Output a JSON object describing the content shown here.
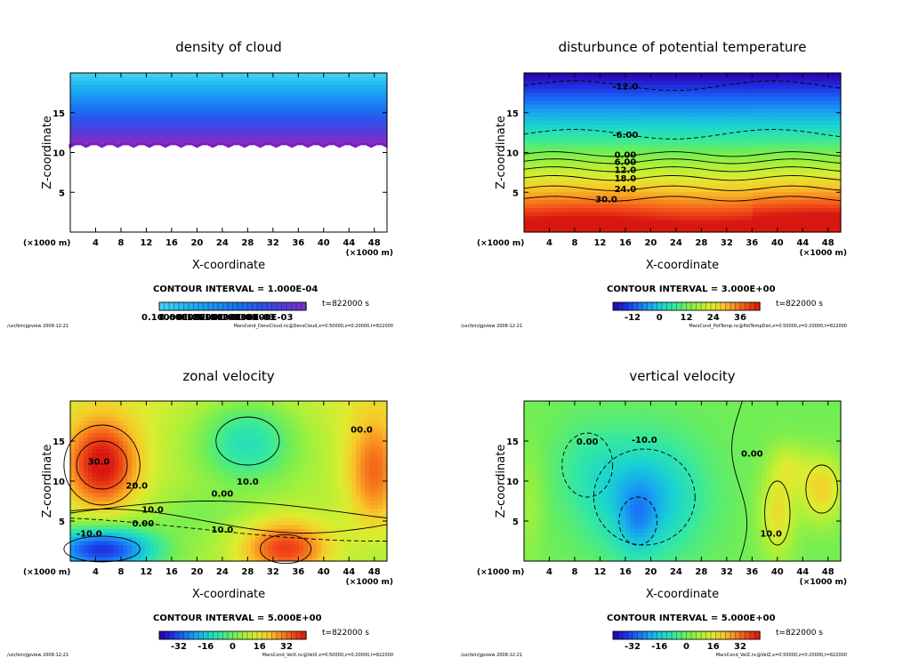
{
  "chart_data": [
    {
      "type": "heatmap",
      "title": "density of cloud",
      "xlabel": "X-coordinate",
      "ylabel": "Z-coordinate",
      "xunit": "(×1000 m)",
      "yunit": "(×1000 m)",
      "xlim": [
        0,
        50
      ],
      "ylim": [
        0,
        20
      ],
      "xticks": [
        4,
        8,
        12,
        16,
        20,
        24,
        28,
        32,
        36,
        40,
        44,
        48
      ],
      "yticks": [
        5,
        10,
        15
      ],
      "contour_interval": "CONTOUR INTERVAL = 1.000E-04",
      "time": "t=822000 s",
      "colorbar_labels": [
        "0.10000E-05",
        "0.60000E-04",
        "0.12000E-03",
        "0.18000E-03",
        "0.24000E-03",
        "0.30000E-03"
      ],
      "footer_left": "/usr/bin/gpview   2008-12-21",
      "footer_right": "MarsCond_DensCloud.nc@DensCloud,x=0:50000,z=0:20000,t=822000",
      "contour_labels": [],
      "field": "cloud"
    },
    {
      "type": "heatmap",
      "title": "disturbunce of potential temperature",
      "xlabel": "X-coordinate",
      "ylabel": "Z-coordinate",
      "xunit": "(×1000 m)",
      "yunit": "(×1000 m)",
      "xlim": [
        0,
        50
      ],
      "ylim": [
        0,
        20
      ],
      "xticks": [
        4,
        8,
        12,
        16,
        20,
        24,
        28,
        32,
        36,
        40,
        44,
        48
      ],
      "yticks": [
        5,
        10,
        15
      ],
      "contour_interval": "CONTOUR INTERVAL = 3.000E+00",
      "time": "t=822000 s",
      "colorbar_labels": [
        "-12",
        "0",
        "12",
        "24",
        "36"
      ],
      "footer_left": "/usr/bin/gpview   2008-12-21",
      "footer_right": "MarsCond_PotTemp.nc@PotTempDist,x=0:50000,z=0:20000,t=822000",
      "contour_labels": [
        {
          "text": "-12.0",
          "x": 16,
          "z": 18.4
        },
        {
          "text": "-6.00",
          "x": 16,
          "z": 12.3
        },
        {
          "text": "0.00",
          "x": 16,
          "z": 9.8
        },
        {
          "text": "6.00",
          "x": 16,
          "z": 8.9
        },
        {
          "text": "12.0",
          "x": 16,
          "z": 7.9
        },
        {
          "text": "18.0",
          "x": 16,
          "z": 6.8
        },
        {
          "text": "24.0",
          "x": 16,
          "z": 5.5
        },
        {
          "text": "30.0",
          "x": 13,
          "z": 4.2
        }
      ],
      "field": "pt"
    },
    {
      "type": "heatmap",
      "title": "zonal velocity",
      "xlabel": "X-coordinate",
      "ylabel": "Z-coordinate",
      "xunit": "(×1000 m)",
      "yunit": "(×1000 m)",
      "xlim": [
        0,
        50
      ],
      "ylim": [
        0,
        20
      ],
      "xticks": [
        4,
        8,
        12,
        16,
        20,
        24,
        28,
        32,
        36,
        40,
        44,
        48
      ],
      "yticks": [
        5,
        10,
        15
      ],
      "contour_interval": "CONTOUR INTERVAL = 5.000E+00",
      "time": "t=822000 s",
      "colorbar_labels": [
        "-32",
        "-16",
        "0",
        "16",
        "32"
      ],
      "footer_left": "/usr/bin/gpview   2008-12-21",
      "footer_right": "MarsCond_VelX.nc@VelX,x=0:50000,z=0:20000,t=822000",
      "contour_labels": [
        {
          "text": "30.0",
          "x": 4.5,
          "z": 12.5
        },
        {
          "text": "20.0",
          "x": 10.5,
          "z": 9.5
        },
        {
          "text": "10.0",
          "x": 13,
          "z": 6.5
        },
        {
          "text": "0.00",
          "x": 11.5,
          "z": 4.8
        },
        {
          "text": "-10.0",
          "x": 3,
          "z": 3.5
        },
        {
          "text": "0.00",
          "x": 24,
          "z": 8.5
        },
        {
          "text": "10.0",
          "x": 28,
          "z": 10.0
        },
        {
          "text": "10.0",
          "x": 24,
          "z": 4.0
        },
        {
          "text": "00.0",
          "x": 46,
          "z": 16.5
        }
      ],
      "field": "u"
    },
    {
      "type": "heatmap",
      "title": "vertical velocity",
      "xlabel": "X-coordinate",
      "ylabel": "Z-coordinate",
      "xunit": "(×1000 m)",
      "yunit": "(×1000 m)",
      "xlim": [
        0,
        50
      ],
      "ylim": [
        0,
        20
      ],
      "xticks": [
        4,
        8,
        12,
        16,
        20,
        24,
        28,
        32,
        36,
        40,
        44,
        48
      ],
      "yticks": [
        5,
        10,
        15
      ],
      "contour_interval": "CONTOUR INTERVAL = 5.000E+00",
      "time": "t=822000 s",
      "colorbar_labels": [
        "-32",
        "-16",
        "0",
        "16",
        "32"
      ],
      "footer_left": "/usr/bin/gpview   2008-12-21",
      "footer_right": "MarsCond_VelZ.nc@VelZ,x=0:50000,z=0:20000,t=822000",
      "contour_labels": [
        {
          "text": "0.00",
          "x": 10,
          "z": 15.0
        },
        {
          "text": "-10.0",
          "x": 19,
          "z": 15.2
        },
        {
          "text": "0.00",
          "x": 36,
          "z": 13.5
        },
        {
          "text": "10.0",
          "x": 39,
          "z": 3.5
        }
      ],
      "field": "w"
    }
  ],
  "colors": {
    "rainbow": [
      "#2b00a8",
      "#1e2ee0",
      "#1a6af5",
      "#17a6f0",
      "#1ad4d0",
      "#35e8a0",
      "#70ee55",
      "#a8f03a",
      "#dcec30",
      "#f8c828",
      "#f88820",
      "#f04818",
      "#d81810"
    ],
    "cloud": [
      "#8a2cc4",
      "#5a3ad8",
      "#2c52ec",
      "#1a72f2",
      "#1896f4",
      "#20b8f0",
      "#48d2f2"
    ]
  }
}
